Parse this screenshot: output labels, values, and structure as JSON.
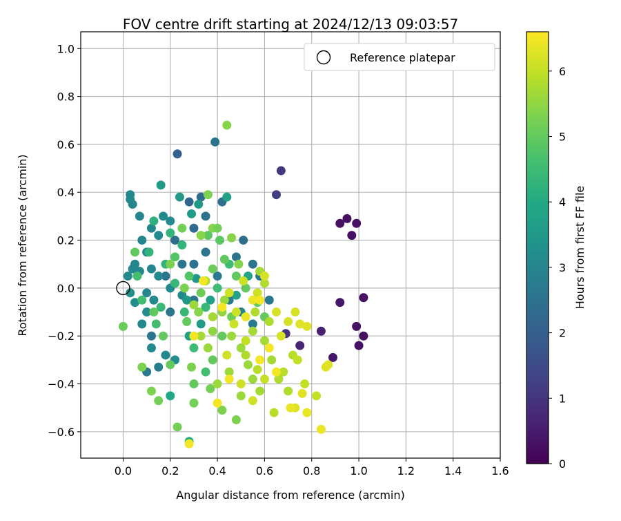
{
  "chart_data": {
    "type": "scatter",
    "title": "FOV centre drift starting at 2024/12/13 09:03:57",
    "xlabel": "Angular distance from reference (arcmin)",
    "ylabel": "Rotation from reference (arcmin)",
    "xlim": [
      -0.18,
      1.6
    ],
    "ylim": [
      -0.71,
      1.07
    ],
    "x_ticks": [
      "0.0",
      "0.2",
      "0.4",
      "0.6",
      "0.8",
      "1.0",
      "1.2",
      "1.4",
      "1.6"
    ],
    "y_ticks": [
      "−0.6",
      "−0.4",
      "−0.2",
      "0.0",
      "0.2",
      "0.4",
      "0.6",
      "0.8",
      "1.0"
    ],
    "grid": true,
    "legend": {
      "position": "top-right",
      "entries": [
        "Reference platepar"
      ]
    },
    "reference_point": {
      "x": 0.0,
      "y": 0.0
    },
    "colorbar": {
      "label": "Hours from first FF file",
      "range": [
        0,
        6.6
      ],
      "ticks": [
        "0",
        "1",
        "2",
        "3",
        "4",
        "5",
        "6"
      ],
      "colormap": "viridis"
    },
    "points": [
      [
        0.92,
        0.27,
        0.3
      ],
      [
        0.95,
        0.29,
        0.3
      ],
      [
        0.99,
        0.27,
        0.3
      ],
      [
        0.97,
        0.22,
        0.3
      ],
      [
        1.02,
        -0.04,
        0.3
      ],
      [
        0.99,
        -0.16,
        0.3
      ],
      [
        1.02,
        -0.2,
        0.3
      ],
      [
        1.0,
        -0.24,
        0.3
      ],
      [
        0.89,
        -0.29,
        0.4
      ],
      [
        0.92,
        -0.06,
        0.4
      ],
      [
        0.84,
        -0.18,
        0.6
      ],
      [
        0.75,
        -0.24,
        0.7
      ],
      [
        0.69,
        -0.19,
        0.9
      ],
      [
        0.67,
        0.49,
        1.1
      ],
      [
        0.65,
        0.39,
        1.2
      ],
      [
        0.23,
        0.56,
        2.0
      ],
      [
        0.39,
        0.61,
        2.5
      ],
      [
        0.28,
        0.36,
        2.2
      ],
      [
        0.33,
        0.38,
        2.3
      ],
      [
        0.42,
        0.36,
        2.4
      ],
      [
        0.51,
        0.2,
        2.4
      ],
      [
        0.55,
        0.1,
        2.5
      ],
      [
        0.58,
        0.05,
        2.6
      ],
      [
        0.62,
        -0.05,
        2.7
      ],
      [
        0.48,
        0.13,
        2.5
      ],
      [
        0.35,
        0.3,
        2.5
      ],
      [
        0.3,
        0.25,
        2.3
      ],
      [
        0.22,
        0.2,
        2.4
      ],
      [
        0.25,
        0.1,
        2.6
      ],
      [
        0.18,
        0.05,
        2.6
      ],
      [
        0.3,
        0.1,
        2.5
      ],
      [
        0.35,
        0.15,
        2.5
      ],
      [
        0.4,
        0.05,
        2.7
      ],
      [
        0.45,
        -0.05,
        2.8
      ],
      [
        0.5,
        -0.1,
        2.9
      ],
      [
        0.55,
        -0.15,
        2.7
      ],
      [
        0.3,
        -0.05,
        2.6
      ],
      [
        0.2,
        -0.1,
        2.6
      ],
      [
        0.12,
        -0.2,
        2.6
      ],
      [
        0.1,
        -0.35,
        2.7
      ],
      [
        0.15,
        -0.33,
        2.8
      ],
      [
        0.03,
        0.39,
        3.1
      ],
      [
        0.04,
        0.35,
        3.0
      ],
      [
        0.03,
        0.37,
        3.0
      ],
      [
        0.07,
        0.3,
        3.0
      ],
      [
        0.08,
        0.2,
        3.0
      ],
      [
        0.05,
        0.1,
        3.0
      ],
      [
        0.1,
        0.15,
        3.0
      ],
      [
        0.12,
        0.25,
        3.0
      ],
      [
        0.15,
        0.22,
        3.1
      ],
      [
        0.17,
        0.3,
        3.1
      ],
      [
        0.2,
        0.28,
        3.1
      ],
      [
        0.12,
        0.08,
        3.0
      ],
      [
        0.07,
        0.07,
        3.0
      ],
      [
        0.04,
        0.08,
        3.0
      ],
      [
        0.02,
        0.05,
        3.1
      ],
      [
        0.1,
        -0.02,
        3.0
      ],
      [
        0.13,
        -0.05,
        3.1
      ],
      [
        0.15,
        0.05,
        3.1
      ],
      [
        0.2,
        0.0,
        3.1
      ],
      [
        0.25,
        -0.03,
        3.1
      ],
      [
        0.08,
        -0.15,
        3.1
      ],
      [
        0.12,
        -0.25,
        3.1
      ],
      [
        0.18,
        -0.28,
        3.1
      ],
      [
        0.22,
        -0.3,
        3.2
      ],
      [
        0.1,
        -0.1,
        3.2
      ],
      [
        0.05,
        -0.06,
        3.2
      ],
      [
        0.03,
        -0.02,
        3.3
      ],
      [
        0.16,
        0.43,
        3.6
      ],
      [
        0.24,
        0.38,
        3.6
      ],
      [
        0.32,
        0.35,
        3.6
      ],
      [
        0.29,
        0.31,
        3.6
      ],
      [
        0.44,
        0.38,
        3.7
      ],
      [
        0.31,
        0.04,
        3.5
      ],
      [
        0.27,
        -0.05,
        3.5
      ],
      [
        0.33,
        -0.15,
        3.6
      ],
      [
        0.28,
        -0.2,
        3.7
      ],
      [
        0.37,
        -0.05,
        3.7
      ],
      [
        0.48,
        -0.03,
        3.8
      ],
      [
        0.53,
        0.05,
        3.9
      ],
      [
        0.2,
        -0.45,
        3.9
      ],
      [
        0.28,
        -0.64,
        4.2
      ],
      [
        0.13,
        0.28,
        4.2
      ],
      [
        0.2,
        0.23,
        4.3
      ],
      [
        0.11,
        0.15,
        4.3
      ],
      [
        0.18,
        0.1,
        4.3
      ],
      [
        0.25,
        0.18,
        4.3
      ],
      [
        0.22,
        0.02,
        4.4
      ],
      [
        0.16,
        -0.08,
        4.4
      ],
      [
        0.26,
        -0.1,
        4.4
      ],
      [
        0.35,
        -0.08,
        4.4
      ],
      [
        0.4,
        0.0,
        4.5
      ],
      [
        0.45,
        0.1,
        4.5
      ],
      [
        0.3,
        -0.25,
        4.5
      ],
      [
        0.35,
        -0.35,
        4.6
      ],
      [
        0.06,
        0.05,
        4.6
      ],
      [
        0.08,
        -0.05,
        4.6
      ],
      [
        0.14,
        -0.15,
        4.6
      ],
      [
        0.22,
        0.13,
        4.8
      ],
      [
        0.28,
        0.05,
        4.8
      ],
      [
        0.36,
        0.22,
        4.9
      ],
      [
        0.41,
        0.2,
        4.9
      ],
      [
        0.43,
        0.12,
        5.0
      ],
      [
        0.48,
        0.05,
        5.0
      ],
      [
        0.52,
        0.0,
        5.0
      ],
      [
        0.57,
        -0.06,
        5.0
      ],
      [
        0.6,
        -0.12,
        5.0
      ],
      [
        0.05,
        0.15,
        5.0
      ],
      [
        0.13,
        -0.1,
        5.0
      ],
      [
        0.17,
        -0.2,
        5.0
      ],
      [
        0.2,
        -0.32,
        5.0
      ],
      [
        0.3,
        -0.4,
        5.0
      ],
      [
        0.38,
        -0.3,
        5.0
      ],
      [
        0.42,
        -0.2,
        5.0
      ],
      [
        0.27,
        -0.14,
        5.0
      ],
      [
        0.33,
        -0.02,
        5.1
      ],
      [
        0.38,
        0.08,
        5.1
      ],
      [
        0.46,
        -0.12,
        5.1
      ],
      [
        0.0,
        -0.16,
        5.1
      ],
      [
        0.15,
        -0.47,
        5.2
      ],
      [
        0.23,
        -0.58,
        5.2
      ],
      [
        0.3,
        -0.48,
        5.2
      ],
      [
        0.37,
        -0.42,
        5.2
      ],
      [
        0.42,
        -0.51,
        5.3
      ],
      [
        0.48,
        -0.55,
        5.3
      ],
      [
        0.12,
        -0.43,
        5.3
      ],
      [
        0.08,
        -0.33,
        5.3
      ],
      [
        0.33,
        0.22,
        5.4
      ],
      [
        0.38,
        0.25,
        5.4
      ],
      [
        0.46,
        0.21,
        5.4
      ],
      [
        0.49,
        0.1,
        5.4
      ],
      [
        0.44,
        0.68,
        5.4
      ],
      [
        0.36,
        0.39,
        5.3
      ],
      [
        0.4,
        0.25,
        5.2
      ],
      [
        0.25,
        0.25,
        5.2
      ],
      [
        0.2,
        0.1,
        5.3
      ],
      [
        0.26,
        0.0,
        5.3
      ],
      [
        0.32,
        -0.1,
        5.4
      ],
      [
        0.29,
        -0.33,
        5.3
      ],
      [
        0.38,
        -0.18,
        5.5
      ],
      [
        0.42,
        -0.1,
        5.5
      ],
      [
        0.46,
        -0.2,
        5.6
      ],
      [
        0.5,
        -0.25,
        5.6
      ],
      [
        0.53,
        -0.32,
        5.6
      ],
      [
        0.55,
        -0.38,
        5.6
      ],
      [
        0.58,
        -0.43,
        5.7
      ],
      [
        0.5,
        -0.45,
        5.6
      ],
      [
        0.45,
        -0.35,
        5.6
      ],
      [
        0.4,
        -0.4,
        5.6
      ],
      [
        0.36,
        -0.25,
        5.6
      ],
      [
        0.33,
        -0.2,
        5.7
      ],
      [
        0.38,
        -0.12,
        5.7
      ],
      [
        0.43,
        -0.05,
        5.6
      ],
      [
        0.35,
        0.03,
        5.8
      ],
      [
        0.3,
        -0.07,
        5.6
      ],
      [
        0.55,
        -0.18,
        5.7
      ],
      [
        0.6,
        -0.22,
        5.7
      ],
      [
        0.63,
        -0.3,
        5.7
      ],
      [
        0.66,
        -0.38,
        5.8
      ],
      [
        0.7,
        -0.43,
        5.8
      ],
      [
        0.58,
        0.07,
        5.7
      ],
      [
        0.6,
        0.02,
        5.8
      ],
      [
        0.52,
        -0.28,
        5.8
      ],
      [
        0.56,
        -0.1,
        5.8
      ],
      [
        0.62,
        -0.14,
        5.8
      ],
      [
        0.64,
        -0.52,
        5.9
      ],
      [
        0.68,
        -0.35,
        5.9
      ],
      [
        0.72,
        -0.28,
        5.9
      ],
      [
        0.74,
        -0.3,
        6.0
      ],
      [
        0.77,
        -0.4,
        6.0
      ],
      [
        0.82,
        -0.45,
        6.0
      ],
      [
        0.6,
        -0.38,
        6.0
      ],
      [
        0.57,
        -0.34,
        5.9
      ],
      [
        0.52,
        -0.22,
        6.0
      ],
      [
        0.47,
        -0.15,
        6.1
      ],
      [
        0.44,
        -0.28,
        6.1
      ],
      [
        0.5,
        -0.4,
        6.1
      ],
      [
        0.55,
        -0.47,
        6.1
      ],
      [
        0.48,
        -0.1,
        6.1
      ],
      [
        0.45,
        -0.02,
        6.1
      ],
      [
        0.51,
        0.03,
        6.1
      ],
      [
        0.57,
        -0.02,
        6.1
      ],
      [
        0.6,
        0.05,
        6.2
      ],
      [
        0.65,
        -0.1,
        6.2
      ],
      [
        0.67,
        -0.2,
        6.2
      ],
      [
        0.7,
        -0.14,
        6.2
      ],
      [
        0.73,
        -0.1,
        6.2
      ],
      [
        0.75,
        -0.15,
        6.3
      ],
      [
        0.78,
        -0.16,
        6.3
      ],
      [
        0.86,
        -0.33,
        6.3
      ],
      [
        0.87,
        -0.32,
        6.3
      ],
      [
        0.76,
        -0.44,
        6.3
      ],
      [
        0.73,
        -0.5,
        6.3
      ],
      [
        0.71,
        -0.5,
        6.4
      ],
      [
        0.78,
        -0.52,
        6.4
      ],
      [
        0.84,
        -0.59,
        6.4
      ],
      [
        0.55,
        -0.05,
        6.4
      ],
      [
        0.52,
        -0.12,
        6.4
      ],
      [
        0.34,
        0.03,
        6.5
      ],
      [
        0.28,
        -0.65,
        6.5
      ],
      [
        0.58,
        -0.05,
        6.5
      ],
      [
        0.42,
        -0.08,
        6.5
      ],
      [
        0.62,
        -0.25,
        6.5
      ],
      [
        0.65,
        -0.35,
        6.5
      ],
      [
        0.58,
        -0.3,
        6.5
      ],
      [
        0.3,
        -0.2,
        6.5
      ],
      [
        0.4,
        -0.48,
        6.5
      ],
      [
        0.45,
        -0.38,
        6.5
      ]
    ]
  }
}
